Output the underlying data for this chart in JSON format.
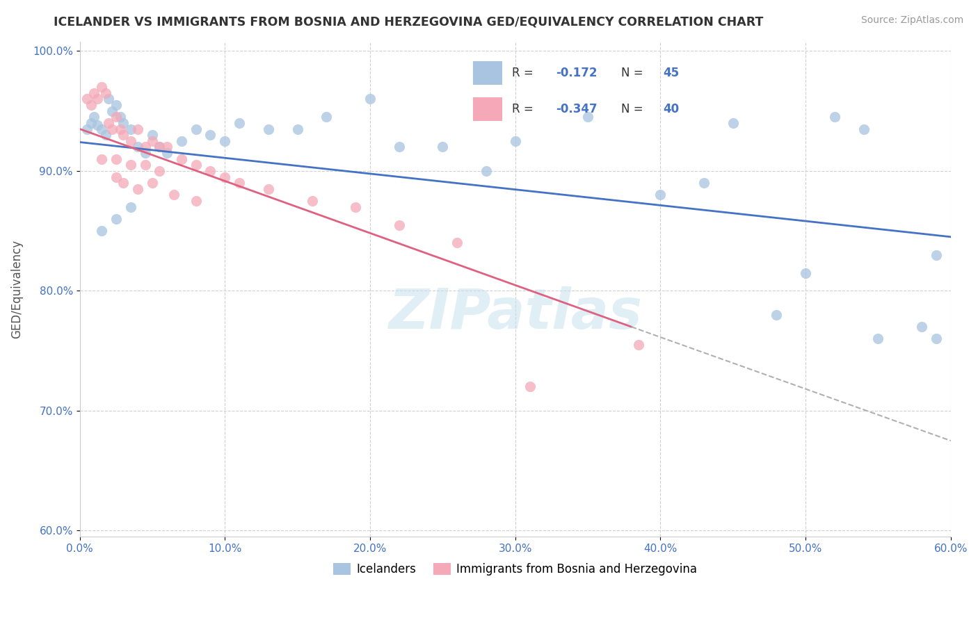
{
  "title": "ICELANDER VS IMMIGRANTS FROM BOSNIA AND HERZEGOVINA GED/EQUIVALENCY CORRELATION CHART",
  "source": "Source: ZipAtlas.com",
  "ylabel": "GED/Equivalency",
  "xlim": [
    0.0,
    0.6
  ],
  "ylim": [
    0.595,
    1.008
  ],
  "xticks": [
    0.0,
    0.1,
    0.2,
    0.3,
    0.4,
    0.5,
    0.6
  ],
  "xticklabels": [
    "0.0%",
    "10.0%",
    "20.0%",
    "30.0%",
    "40.0%",
    "50.0%",
    "60.0%"
  ],
  "yticks": [
    0.6,
    0.7,
    0.8,
    0.9,
    1.0
  ],
  "yticklabels": [
    "60.0%",
    "70.0%",
    "80.0%",
    "90.0%",
    "100.0%"
  ],
  "blue_color": "#a8c4e0",
  "pink_color": "#f4a8b8",
  "blue_line_color": "#4472c4",
  "pink_line_color": "#e06080",
  "dashed_line_color": "#b0b0b0",
  "legend_R1": "-0.172",
  "legend_N1": "45",
  "legend_R2": "-0.347",
  "legend_N2": "40",
  "legend_label1": "Icelanders",
  "legend_label2": "Immigrants from Bosnia and Herzegovina",
  "watermark": "ZIPatlas",
  "blue_scatter_x": [
    0.005,
    0.008,
    0.01,
    0.012,
    0.015,
    0.018,
    0.02,
    0.022,
    0.025,
    0.028,
    0.03,
    0.035,
    0.04,
    0.045,
    0.05,
    0.055,
    0.06,
    0.07,
    0.08,
    0.09,
    0.1,
    0.11,
    0.13,
    0.15,
    0.17,
    0.2,
    0.22,
    0.25,
    0.28,
    0.3,
    0.35,
    0.4,
    0.43,
    0.45,
    0.48,
    0.5,
    0.52,
    0.55,
    0.58,
    0.59,
    0.015,
    0.025,
    0.035,
    0.54,
    0.59
  ],
  "blue_scatter_y": [
    0.935,
    0.94,
    0.945,
    0.938,
    0.935,
    0.93,
    0.96,
    0.95,
    0.955,
    0.945,
    0.94,
    0.935,
    0.92,
    0.915,
    0.93,
    0.92,
    0.915,
    0.925,
    0.935,
    0.93,
    0.925,
    0.94,
    0.935,
    0.935,
    0.945,
    0.96,
    0.92,
    0.92,
    0.9,
    0.925,
    0.945,
    0.88,
    0.89,
    0.94,
    0.78,
    0.815,
    0.945,
    0.76,
    0.77,
    0.83,
    0.85,
    0.86,
    0.87,
    0.935,
    0.76
  ],
  "pink_scatter_x": [
    0.005,
    0.008,
    0.01,
    0.012,
    0.015,
    0.018,
    0.02,
    0.022,
    0.025,
    0.028,
    0.03,
    0.035,
    0.04,
    0.045,
    0.05,
    0.055,
    0.06,
    0.07,
    0.08,
    0.09,
    0.1,
    0.11,
    0.13,
    0.16,
    0.19,
    0.22,
    0.26,
    0.015,
    0.025,
    0.035,
    0.045,
    0.055,
    0.025,
    0.03,
    0.04,
    0.05,
    0.065,
    0.08,
    0.31,
    0.385
  ],
  "pink_scatter_y": [
    0.96,
    0.955,
    0.965,
    0.96,
    0.97,
    0.965,
    0.94,
    0.935,
    0.945,
    0.935,
    0.93,
    0.925,
    0.935,
    0.92,
    0.925,
    0.92,
    0.92,
    0.91,
    0.905,
    0.9,
    0.895,
    0.89,
    0.885,
    0.875,
    0.87,
    0.855,
    0.84,
    0.91,
    0.91,
    0.905,
    0.905,
    0.9,
    0.895,
    0.89,
    0.885,
    0.89,
    0.88,
    0.875,
    0.72,
    0.755
  ],
  "blue_trend_x": [
    0.0,
    0.6
  ],
  "blue_trend_y": [
    0.924,
    0.845
  ],
  "pink_trend_x": [
    0.0,
    0.38
  ],
  "pink_trend_y": [
    0.935,
    0.77
  ],
  "dash_trend_x": [
    0.38,
    0.6
  ],
  "dash_trend_y": [
    0.77,
    0.675
  ]
}
